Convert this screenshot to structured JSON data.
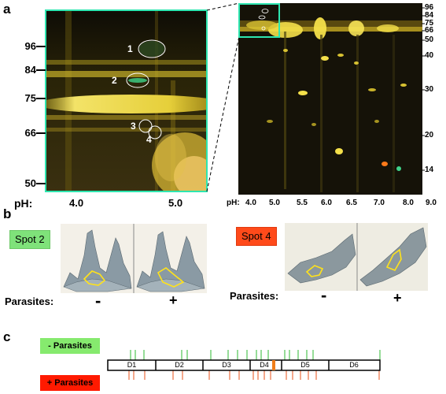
{
  "panel_labels": {
    "a": "a",
    "b": "b",
    "c": "c"
  },
  "panel_a": {
    "zoom_mw_ticks": [
      "96",
      "84",
      "75",
      "66",
      "50"
    ],
    "zoom_ph_label": "pH:",
    "zoom_ph_ticks": [
      "4.0",
      "5.0"
    ],
    "spot_numbers": [
      "1",
      "2",
      "3",
      "4"
    ],
    "full_mw_ticks": [
      "96",
      "84",
      "75",
      "66",
      "50",
      "40",
      "30",
      "20",
      "14"
    ],
    "full_ph_label": "pH:",
    "full_ph_ticks": [
      "4.0",
      "5.0",
      "5.5",
      "6.0",
      "6.5",
      "7.0",
      "8.0",
      "9.0"
    ],
    "colors": {
      "frame": "#2ee6b0",
      "gel_bg": "#151208",
      "spot_yellow": "#f4e04a"
    }
  },
  "panel_b": {
    "spot2": {
      "label": "Spot 2",
      "color": "#7fe27a"
    },
    "spot4": {
      "label": "Spot 4",
      "color": "#ff4a1a"
    },
    "parasites_label": "Parasites:",
    "minus": "-",
    "plus": "+"
  },
  "panel_c": {
    "minus_parasites": "- Parasites",
    "plus_parasites": "+ Parasites",
    "minus_color": "#86ea6e",
    "plus_color": "#ff1a00",
    "domains": [
      "D1",
      "D2",
      "D3",
      "D4",
      "D5",
      "D6"
    ]
  }
}
